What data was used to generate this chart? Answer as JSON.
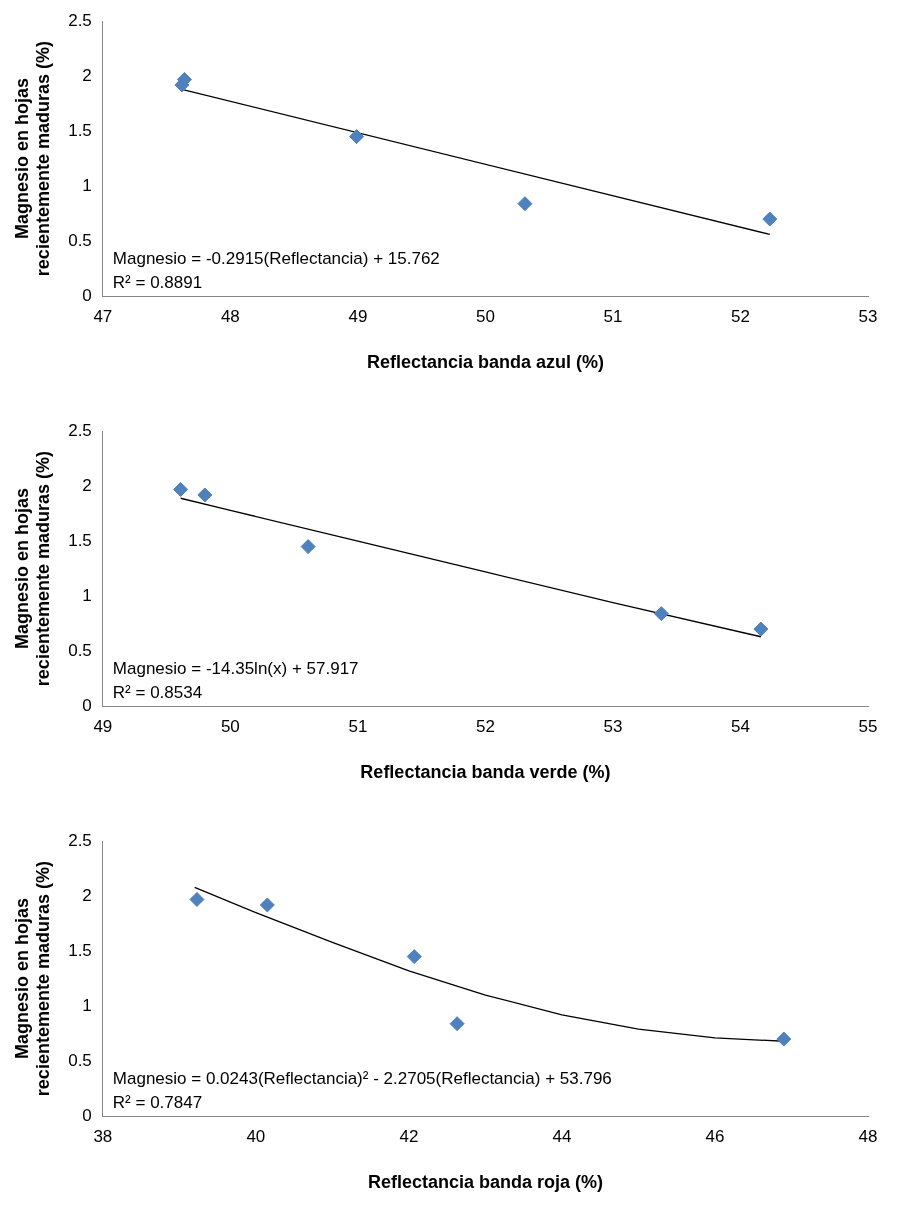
{
  "chart_data": [
    {
      "type": "scatter",
      "xlabel": "Reflectancia banda azul (%)",
      "ylabel": "Magnesio en hojas recientemente maduras (%)",
      "xlim": [
        47,
        53
      ],
      "xticks": [
        47,
        48,
        49,
        50,
        51,
        52,
        53
      ],
      "ylim": [
        0,
        2.5
      ],
      "yticks": [
        0,
        0.5,
        1,
        1.5,
        2,
        2.5
      ],
      "grid": false,
      "legend": false,
      "marker": "diamond",
      "series": [
        {
          "type": "scatter",
          "color": "#4f81bd",
          "x": [
            47.64,
            47.62,
            48.99,
            50.31,
            52.23
          ],
          "values": [
            1.97,
            1.92,
            1.45,
            0.84,
            0.7
          ]
        },
        {
          "type": "line",
          "color": "#000000",
          "marker": "none",
          "x": [
            47.62,
            52.23
          ],
          "values": [
            1.88,
            0.56
          ]
        }
      ],
      "annotations": [
        "Magnesio = -0.2915(Reflectancia) + 15.762",
        "R² = 0.8891"
      ]
    },
    {
      "type": "scatter",
      "xlabel": "Reflectancia banda verde (%)",
      "ylabel": "Magnesio en hojas recientemente maduras (%)",
      "xlim": [
        49,
        55
      ],
      "xticks": [
        49,
        50,
        51,
        52,
        53,
        54,
        55
      ],
      "ylim": [
        0,
        2.5
      ],
      "yticks": [
        0,
        0.5,
        1,
        1.5,
        2,
        2.5
      ],
      "grid": false,
      "legend": false,
      "marker": "diamond",
      "series": [
        {
          "type": "scatter",
          "color": "#4f81bd",
          "x": [
            49.61,
            49.8,
            50.61,
            53.38,
            54.16
          ],
          "values": [
            1.97,
            1.92,
            1.45,
            0.84,
            0.7
          ]
        },
        {
          "type": "line",
          "color": "#000000",
          "marker": "none",
          "x": [
            49.61,
            50,
            51,
            52,
            53,
            54.16
          ],
          "values": [
            1.89,
            1.78,
            1.5,
            1.22,
            0.94,
            0.63
          ]
        }
      ],
      "annotations": [
        "Magnesio = -14.35ln(x) + 57.917",
        "R² = 0.8534"
      ]
    },
    {
      "type": "scatter",
      "xlabel": "Reflectancia banda roja (%)",
      "ylabel": "Magnesio en hojas recientemente maduras (%)",
      "xlim": [
        38,
        48
      ],
      "xticks": [
        38,
        40,
        42,
        44,
        46,
        48
      ],
      "ylim": [
        0,
        2.5
      ],
      "yticks": [
        0,
        0.5,
        1,
        1.5,
        2,
        2.5
      ],
      "grid": false,
      "legend": false,
      "marker": "diamond",
      "series": [
        {
          "type": "scatter",
          "color": "#4f81bd",
          "x": [
            39.23,
            40.15,
            42.07,
            42.63,
            46.9
          ],
          "values": [
            1.97,
            1.92,
            1.45,
            0.84,
            0.7
          ]
        },
        {
          "type": "line",
          "color": "#000000",
          "marker": "none",
          "x": [
            39.2,
            40,
            41,
            42,
            43,
            44,
            45,
            46,
            46.9
          ],
          "values": [
            2.08,
            1.85,
            1.58,
            1.32,
            1.1,
            0.92,
            0.79,
            0.71,
            0.68
          ]
        }
      ],
      "annotations": [
        "Magnesio = 0.0243(Reflectancia)² - 2.2705(Reflectancia) + 53.796",
        "R² = 0.7847"
      ]
    }
  ]
}
